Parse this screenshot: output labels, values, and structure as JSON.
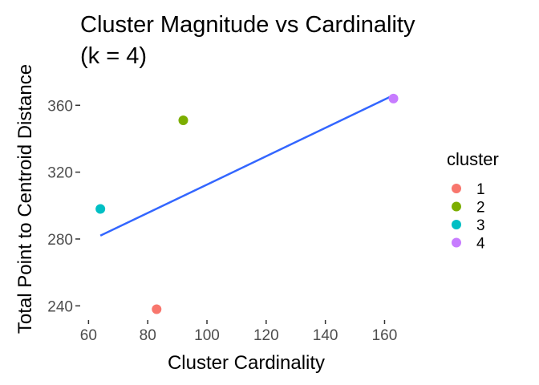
{
  "chart_data": {
    "type": "scatter",
    "title_lines": [
      "Cluster Magnitude vs Cardinality",
      "(k = 4)"
    ],
    "xlabel": "Cluster Cardinality",
    "ylabel": "Total Point to Centroid Distance",
    "xlim": [
      58,
      168
    ],
    "ylim": [
      232,
      375
    ],
    "x_ticks": [
      {
        "value": 60,
        "label": "60"
      },
      {
        "value": 80,
        "label": "80"
      },
      {
        "value": 100,
        "label": "100"
      },
      {
        "value": 120,
        "label": "120"
      },
      {
        "value": 140,
        "label": "140"
      },
      {
        "value": 160,
        "label": "160"
      }
    ],
    "y_ticks": [
      {
        "value": 240,
        "label": "240"
      },
      {
        "value": 280,
        "label": "280"
      },
      {
        "value": 320,
        "label": "320"
      },
      {
        "value": 360,
        "label": "360"
      }
    ],
    "grid": false,
    "points": [
      {
        "cluster": "1",
        "x": 83,
        "y": 238,
        "color": "#F8766D"
      },
      {
        "cluster": "2",
        "x": 92,
        "y": 351,
        "color": "#7CAE00"
      },
      {
        "cluster": "3",
        "x": 64,
        "y": 298,
        "color": "#00BFC4"
      },
      {
        "cluster": "4",
        "x": 163,
        "y": 364,
        "color": "#C77CFF"
      }
    ],
    "trend_line": {
      "x1": 64,
      "y1": 282,
      "x2": 163,
      "y2": 366,
      "color": "#3366FF"
    },
    "legend": {
      "title": "cluster",
      "placement": "right",
      "items": [
        {
          "label": "1",
          "color": "#F8766D"
        },
        {
          "label": "2",
          "color": "#7CAE00"
        },
        {
          "label": "3",
          "color": "#00BFC4"
        },
        {
          "label": "4",
          "color": "#C77CFF"
        }
      ]
    }
  }
}
